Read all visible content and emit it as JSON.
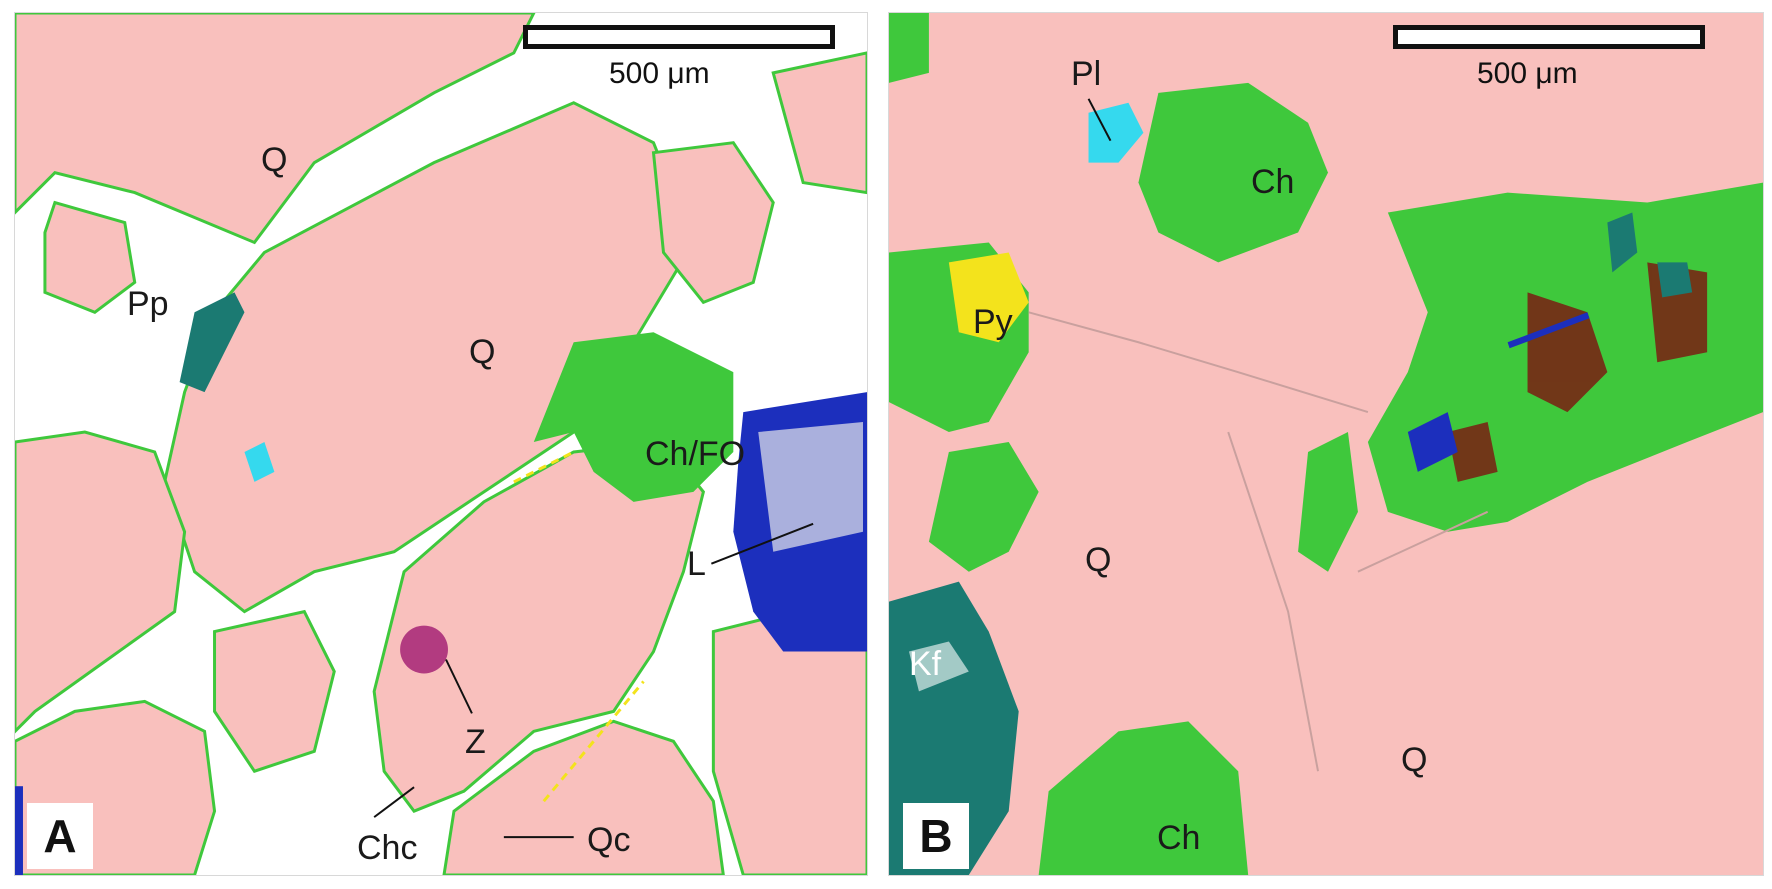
{
  "colors": {
    "quartz": "#f9c0bd",
    "pore": "#ffffff",
    "chlorite": "#3fc83c",
    "kfeldspar": "#1b7a72",
    "pyrite": "#f3e31c",
    "plagioclase": "#35d9ee",
    "zircon": "#b23b80",
    "lithic": "#1c2fbd",
    "dark_speckle": "#7a1d12"
  },
  "panel_a": {
    "letter": "A",
    "scale_label": "500 μm",
    "labels": {
      "q1": "Q",
      "q2": "Q",
      "pp": "Pp",
      "ch_fo": "Ch/FO",
      "l": "L",
      "z": "Z",
      "chc": "Chc",
      "qc": "Qc"
    }
  },
  "panel_b": {
    "letter": "B",
    "scale_label": "500 μm",
    "labels": {
      "pl": "Pl",
      "ch1": "Ch",
      "py": "Py",
      "q1": "Q",
      "q2": "Q",
      "kf": "Kf",
      "ch2": "Ch"
    }
  }
}
